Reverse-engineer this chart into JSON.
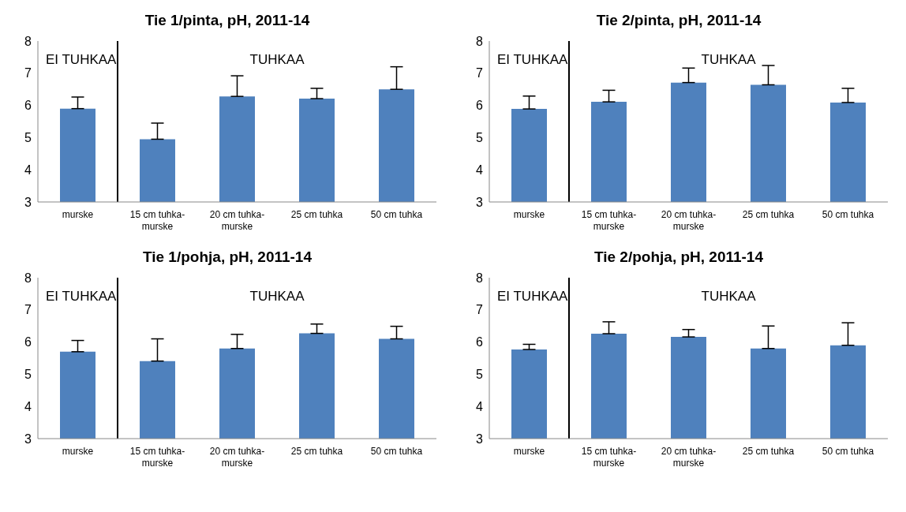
{
  "chart_data": [
    {
      "type": "bar",
      "title": "Tie 1/pinta, pH, 2011-14",
      "categories": [
        "murske",
        "15 cm tuhka-murske",
        "20 cm tuhka-murske",
        "25 cm tuhka",
        "50 cm tuhka"
      ],
      "values": [
        5.9,
        4.95,
        6.28,
        6.21,
        6.5
      ],
      "errors": [
        [
          5.9,
          6.26
        ],
        [
          4.95,
          5.45
        ],
        [
          6.28,
          6.92
        ],
        [
          6.21,
          6.53
        ],
        [
          6.5,
          7.2
        ]
      ],
      "color": "#4f81bd",
      "ylim": [
        3,
        8
      ],
      "yticks": [
        3,
        4,
        5,
        6,
        7,
        8
      ],
      "grid": false,
      "ref_lines": [
        {
          "axis": "x",
          "color": "#000000"
        }
      ],
      "annotations": [
        "EI TUHKAA",
        "TUHKAA"
      ]
    },
    {
      "type": "bar",
      "title": "Tie 2/pinta, pH, 2011-14",
      "categories": [
        "murske",
        "15 cm tuhka-murske",
        "20 cm tuhka-murske",
        "25 cm tuhka",
        "50 cm tuhka"
      ],
      "values": [
        5.89,
        6.11,
        6.71,
        6.64,
        6.09
      ],
      "errors": [
        [
          5.89,
          6.29
        ],
        [
          6.11,
          6.47
        ],
        [
          6.71,
          7.16
        ],
        [
          6.64,
          7.24
        ],
        [
          6.09,
          6.53
        ]
      ],
      "color": "#4f81bd",
      "ylim": [
        3,
        8
      ],
      "yticks": [
        3,
        4,
        5,
        6,
        7,
        8
      ],
      "grid": false,
      "ref_lines": [
        {
          "axis": "x",
          "color": "#000000"
        }
      ],
      "annotations": [
        "EI TUHKAA",
        "TUHKAA"
      ]
    },
    {
      "type": "bar",
      "title": "Tie 1/pohja, pH, 2011-14",
      "categories": [
        "murske",
        "15 cm tuhka-murske",
        "20 cm tuhka-murske",
        "25 cm tuhka",
        "50 cm tuhka"
      ],
      "values": [
        5.7,
        5.41,
        5.8,
        6.27,
        6.1
      ],
      "errors": [
        [
          5.7,
          6.05
        ],
        [
          5.41,
          6.1
        ],
        [
          5.8,
          6.24
        ],
        [
          6.27,
          6.56
        ],
        [
          6.1,
          6.49
        ]
      ],
      "color": "#4f81bd",
      "ylim": [
        3,
        8
      ],
      "yticks": [
        3,
        4,
        5,
        6,
        7,
        8
      ],
      "grid": false,
      "ref_lines": [
        {
          "axis": "x",
          "color": "#000000"
        }
      ],
      "annotations": [
        "EI TUHKAA",
        "TUHKAA"
      ]
    },
    {
      "type": "bar",
      "title": "Tie 2/pohja, pH, 2011-14",
      "categories": [
        "murske",
        "15 cm tuhka-murske",
        "20 cm tuhka-murske",
        "25 cm tuhka",
        "50 cm tuhka"
      ],
      "values": [
        5.77,
        6.26,
        6.16,
        5.8,
        5.9
      ],
      "errors": [
        [
          5.77,
          5.93
        ],
        [
          6.26,
          6.63
        ],
        [
          6.16,
          6.39
        ],
        [
          5.8,
          6.5
        ],
        [
          5.9,
          6.6
        ]
      ],
      "color": "#4f81bd",
      "ylim": [
        3,
        8
      ],
      "yticks": [
        3,
        4,
        5,
        6,
        7,
        8
      ],
      "grid": false,
      "ref_lines": [
        {
          "axis": "x",
          "color": "#000000"
        }
      ],
      "annotations": [
        "EI TUHKAA",
        "TUHKAA"
      ]
    }
  ]
}
